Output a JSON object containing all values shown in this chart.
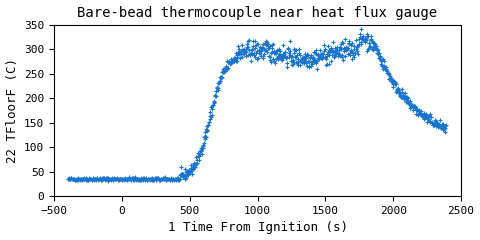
{
  "title": "Bare-bead thermocouple near heat flux gauge",
  "xlabel": "1 Time From Ignition (s)",
  "ylabel": "22 TFloorF (C)",
  "xlim": [
    -500,
    2500
  ],
  "ylim": [
    0,
    350
  ],
  "xticks": [
    -500,
    0,
    500,
    1000,
    1500,
    2000,
    2500
  ],
  "yticks": [
    0,
    50,
    100,
    150,
    200,
    250,
    300,
    350
  ],
  "line_color": "#1874CD",
  "marker": "+",
  "markersize": 2.5,
  "markeredgewidth": 0.8,
  "title_fontsize": 10,
  "axis_label_fontsize": 9,
  "tick_fontsize": 8,
  "figsize": [
    4.8,
    2.4
  ],
  "dpi": 100
}
